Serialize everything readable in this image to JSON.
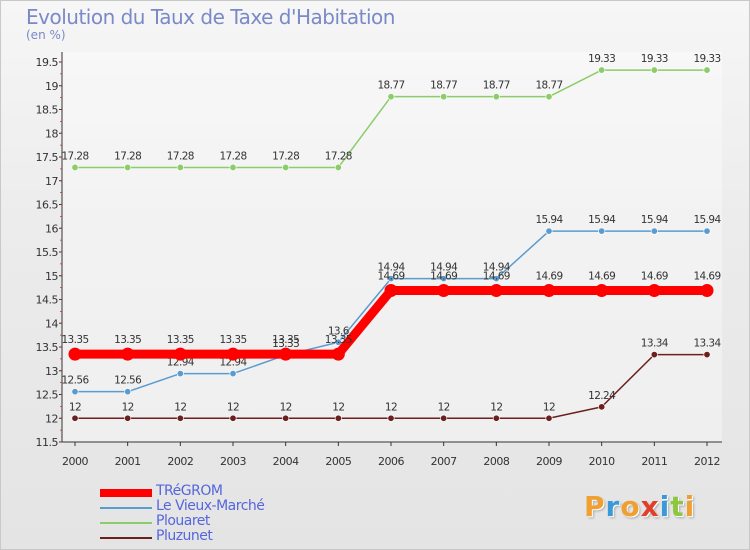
{
  "title": "Evolution du Taux de Taxe d'Habitation",
  "unit_label": "(en %)",
  "logo_text": "Proxiti",
  "logo_colors": [
    "#f0a030",
    "#3a9ad9",
    "#f0a030",
    "#e0402a",
    "#3a9ad9",
    "#8dc63f",
    "#f0a030"
  ],
  "chart_data": {
    "type": "line",
    "title": "Evolution du Taux de Taxe d'Habitation",
    "ylabel": "(en %)",
    "x": [
      "2000",
      "2001",
      "2002",
      "2003",
      "2004",
      "2005",
      "2006",
      "2007",
      "2008",
      "2009",
      "2010",
      "2011",
      "2012"
    ],
    "ylim": [
      11.5,
      19.5
    ],
    "yticks": [
      "11.5",
      "12",
      "12.5",
      "13",
      "13.5",
      "14",
      "14.5",
      "15",
      "15.5",
      "16",
      "16.5",
      "17",
      "17.5",
      "18",
      "18.5",
      "19",
      "19.5"
    ],
    "grid": false,
    "legend_position": "bottom-left",
    "series": [
      {
        "name": "Pluzunet",
        "color": "#6b1f1f",
        "values": [
          12,
          12,
          12,
          12,
          12,
          12,
          12,
          12,
          12,
          12,
          12.24,
          13.34,
          13.34
        ],
        "labels": [
          "12",
          "12",
          "12",
          "12",
          "12",
          "12",
          "12",
          "12",
          "12",
          "12",
          "12.24",
          "13.34",
          "13.34"
        ]
      },
      {
        "name": "Plouaret",
        "color": "#8ccc6a",
        "values": [
          17.28,
          17.28,
          17.28,
          17.28,
          17.28,
          17.28,
          18.77,
          18.77,
          18.77,
          18.77,
          19.33,
          19.33,
          19.33
        ],
        "labels": [
          "17.28",
          "17.28",
          "17.28",
          "17.28",
          "17.28",
          "17.28",
          "18.77",
          "18.77",
          "18.77",
          "18.77",
          "19.33",
          "19.33",
          "19.33"
        ]
      },
      {
        "name": "Le Vieux-Marché",
        "color": "#5a9bd0",
        "values": [
          12.56,
          12.56,
          12.94,
          12.94,
          13.33,
          13.6,
          14.94,
          14.94,
          14.94,
          15.94,
          15.94,
          15.94,
          15.94
        ],
        "labels": [
          "12.56",
          "12.56",
          "12.94",
          "12.94",
          "13.33",
          "13.6",
          "14.94",
          "14.94",
          "14.94",
          "15.94",
          "15.94",
          "15.94",
          "15.94"
        ]
      },
      {
        "name": "TRéGROM",
        "color": "#ff0000",
        "values": [
          13.35,
          13.35,
          13.35,
          13.35,
          13.35,
          13.35,
          14.69,
          14.69,
          14.69,
          14.69,
          14.69,
          14.69,
          14.69
        ],
        "labels": [
          "13.35",
          "13.35",
          "13.35",
          "13.35",
          "13.35",
          "13.35",
          "14.69",
          "14.69",
          "14.69",
          "14.69",
          "14.69",
          "14.69",
          "14.69"
        ]
      }
    ],
    "legend": [
      "TRéGROM",
      "Le Vieux-Marché",
      "Plouaret",
      "Pluzunet"
    ]
  }
}
